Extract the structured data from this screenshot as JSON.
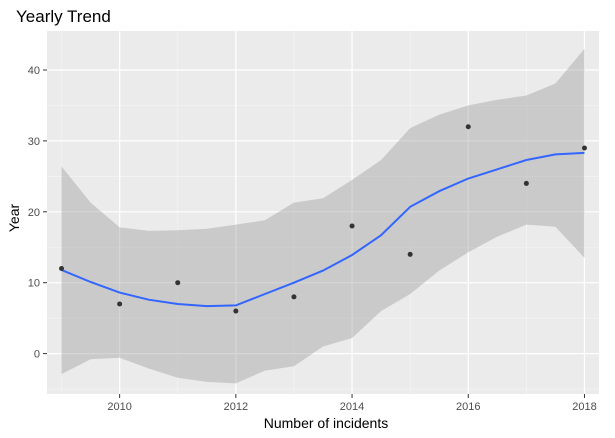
{
  "chart_data": {
    "type": "scatter",
    "title": "Yearly Trend",
    "xlabel": "Number of incidents",
    "ylabel": "Year",
    "xlim": [
      2008.75,
      2018.25
    ],
    "ylim": [
      -5.7,
      45.5
    ],
    "x_ticks": [
      2010,
      2012,
      2014,
      2016,
      2018
    ],
    "x_minor": [
      2009,
      2011,
      2013,
      2015,
      2017
    ],
    "y_ticks": [
      0,
      10,
      20,
      30,
      40
    ],
    "y_minor": [
      -5,
      5,
      15,
      25,
      35
    ],
    "grid": true,
    "points": [
      {
        "x": 2009,
        "y": 12
      },
      {
        "x": 2010,
        "y": 7
      },
      {
        "x": 2011,
        "y": 10
      },
      {
        "x": 2012,
        "y": 6
      },
      {
        "x": 2013,
        "y": 8
      },
      {
        "x": 2014,
        "y": 18
      },
      {
        "x": 2015,
        "y": 14
      },
      {
        "x": 2016,
        "y": 32
      },
      {
        "x": 2017,
        "y": 24
      },
      {
        "x": 2018,
        "y": 29
      }
    ],
    "smooth": {
      "x": [
        2009,
        2009.5,
        2010,
        2010.5,
        2011,
        2011.5,
        2012,
        2012.5,
        2013,
        2013.5,
        2014,
        2014.5,
        2015,
        2015.5,
        2016,
        2016.5,
        2017,
        2017.5,
        2018
      ],
      "y": [
        11.8,
        10.1,
        8.6,
        7.6,
        7.0,
        6.7,
        6.8,
        8.4,
        10.0,
        11.7,
        13.9,
        16.7,
        20.7,
        22.9,
        24.7,
        26.0,
        27.3,
        28.1,
        28.3
      ],
      "lower": [
        -2.9,
        -0.8,
        -0.6,
        -2.1,
        -3.4,
        -4.0,
        -4.2,
        -2.4,
        -1.8,
        1.0,
        2.2,
        6.0,
        8.4,
        11.7,
        14.3,
        16.5,
        18.2,
        17.9,
        13.5
      ],
      "upper": [
        26.4,
        21.3,
        17.8,
        17.3,
        17.4,
        17.6,
        18.2,
        18.8,
        21.3,
        21.9,
        24.5,
        27.3,
        31.8,
        33.7,
        35.0,
        35.8,
        36.4,
        38.1,
        43.0
      ]
    },
    "colors": {
      "panel": "#ebebeb",
      "grid_major": "#ffffff",
      "grid_minor": "#f5f5f5",
      "points": "#333333",
      "line": "#3366ff",
      "band": "#999999"
    }
  }
}
